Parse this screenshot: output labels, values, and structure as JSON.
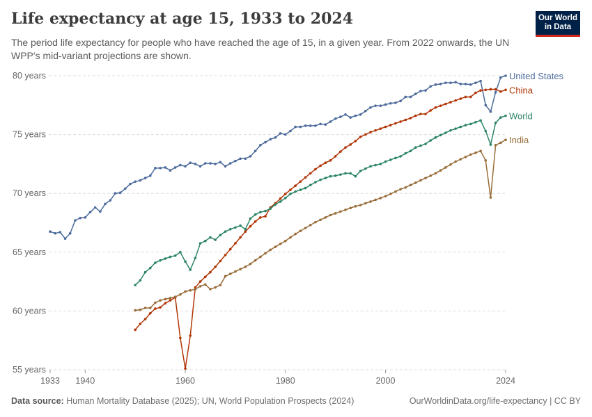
{
  "header": {
    "title": "Life expectancy at age 15, 1933 to 2024",
    "subtitle": "The period life expectancy for people who have reached the age of 15, in a given year. From 2022 onwards, the UN WPP's mid-variant projections are shown.",
    "logo_line1": "Our World",
    "logo_line2": "in Data"
  },
  "footer": {
    "source_label": "Data source:",
    "source_text": "Human Mortality Database (2025); UN, World Population Prospects (2024)",
    "credit": "OurWorldinData.org/life-expectancy | CC BY"
  },
  "chart_data": {
    "type": "line",
    "title": "Life expectancy at age 15, 1933 to 2024",
    "xlabel": "",
    "ylabel": "",
    "xlim": [
      1933,
      2024
    ],
    "ylim": [
      55,
      80
    ],
    "x_ticks": [
      1933,
      1940,
      1960,
      1980,
      2000,
      2024
    ],
    "y_ticks": [
      {
        "value": 55,
        "label": "55 years"
      },
      {
        "value": 60,
        "label": "60 years"
      },
      {
        "value": 65,
        "label": "65 years"
      },
      {
        "value": 70,
        "label": "70 years"
      },
      {
        "value": 75,
        "label": "75 years"
      },
      {
        "value": 80,
        "label": "80 years"
      }
    ],
    "grid": "horizontal dashed",
    "legend": "inline labels at right end of lines",
    "series": [
      {
        "name": "United States",
        "color": "#4c6a9c",
        "start_year": 1933,
        "values": [
          66.75,
          66.6,
          66.7,
          66.15,
          66.6,
          67.7,
          67.9,
          67.95,
          68.4,
          68.8,
          68.45,
          69.1,
          69.4,
          70.0,
          70.05,
          70.4,
          70.8,
          71.0,
          71.1,
          71.3,
          71.5,
          72.15,
          72.15,
          72.2,
          71.95,
          72.2,
          72.4,
          72.3,
          72.6,
          72.5,
          72.3,
          72.55,
          72.55,
          72.5,
          72.65,
          72.3,
          72.55,
          72.75,
          72.95,
          72.95,
          73.15,
          73.6,
          74.1,
          74.35,
          74.6,
          74.75,
          75.1,
          75.0,
          75.3,
          75.65,
          75.65,
          75.75,
          75.75,
          75.75,
          75.9,
          75.85,
          76.1,
          76.35,
          76.5,
          76.7,
          76.45,
          76.6,
          76.7,
          77.0,
          77.3,
          77.45,
          77.45,
          77.55,
          77.65,
          77.7,
          77.85,
          78.2,
          78.2,
          78.45,
          78.7,
          78.75,
          79.1,
          79.25,
          79.3,
          79.4,
          79.4,
          79.45,
          79.3,
          79.3,
          79.25,
          79.4,
          79.55,
          77.5,
          76.95,
          78.6,
          79.85,
          80.0
        ]
      },
      {
        "name": "China",
        "color": "#b13507",
        "start_year": 1950,
        "values": [
          58.4,
          58.9,
          59.3,
          59.8,
          60.2,
          60.3,
          60.65,
          60.9,
          61.15,
          57.7,
          55.1,
          57.9,
          62.0,
          62.5,
          62.9,
          63.3,
          63.75,
          64.25,
          64.75,
          65.25,
          65.75,
          66.25,
          66.75,
          67.2,
          67.6,
          67.95,
          68.05,
          68.8,
          69.15,
          69.55,
          69.95,
          70.3,
          70.65,
          71.0,
          71.35,
          71.7,
          72.05,
          72.35,
          72.6,
          72.8,
          73.15,
          73.55,
          73.9,
          74.15,
          74.45,
          74.8,
          75.0,
          75.2,
          75.35,
          75.5,
          75.65,
          75.8,
          75.95,
          76.1,
          76.25,
          76.4,
          76.6,
          76.75,
          76.75,
          77.05,
          77.3,
          77.45,
          77.6,
          77.75,
          77.9,
          78.05,
          78.2,
          78.2,
          78.55,
          78.75,
          78.8,
          78.85,
          78.85,
          78.65,
          78.8
        ]
      },
      {
        "name": "World",
        "color": "#2c8465",
        "start_year": 1950,
        "values": [
          62.2,
          62.6,
          63.3,
          63.65,
          64.1,
          64.3,
          64.45,
          64.6,
          64.7,
          65.0,
          64.2,
          63.5,
          64.5,
          65.75,
          65.95,
          66.25,
          66.05,
          66.45,
          66.75,
          66.95,
          67.1,
          67.25,
          66.95,
          67.85,
          68.2,
          68.4,
          68.5,
          68.7,
          69.05,
          69.3,
          69.6,
          69.95,
          70.15,
          70.3,
          70.45,
          70.7,
          70.95,
          71.15,
          71.3,
          71.45,
          71.5,
          71.6,
          71.7,
          71.7,
          71.45,
          71.9,
          72.1,
          72.3,
          72.4,
          72.5,
          72.7,
          72.85,
          73.0,
          73.15,
          73.4,
          73.6,
          73.9,
          74.05,
          74.2,
          74.5,
          74.75,
          74.95,
          75.15,
          75.35,
          75.5,
          75.65,
          75.8,
          75.9,
          76.05,
          76.2,
          75.3,
          74.15,
          76.0,
          76.45,
          76.6
        ]
      },
      {
        "name": "India",
        "color": "#986d39",
        "start_year": 1950,
        "values": [
          60.05,
          60.1,
          60.25,
          60.25,
          60.7,
          60.9,
          61.0,
          61.1,
          61.2,
          61.4,
          61.65,
          61.75,
          61.85,
          62.1,
          62.25,
          61.85,
          62.0,
          62.2,
          62.95,
          63.15,
          63.35,
          63.55,
          63.75,
          64.0,
          64.3,
          64.6,
          64.9,
          65.2,
          65.45,
          65.7,
          65.95,
          66.25,
          66.55,
          66.8,
          67.05,
          67.3,
          67.55,
          67.75,
          67.95,
          68.15,
          68.3,
          68.45,
          68.6,
          68.75,
          68.9,
          69.0,
          69.15,
          69.3,
          69.45,
          69.6,
          69.75,
          69.95,
          70.15,
          70.35,
          70.5,
          70.7,
          70.9,
          71.1,
          71.3,
          71.5,
          71.7,
          71.95,
          72.2,
          72.45,
          72.7,
          72.9,
          73.1,
          73.3,
          73.45,
          73.6,
          72.8,
          69.65,
          74.1,
          74.3,
          74.55
        ]
      }
    ]
  }
}
